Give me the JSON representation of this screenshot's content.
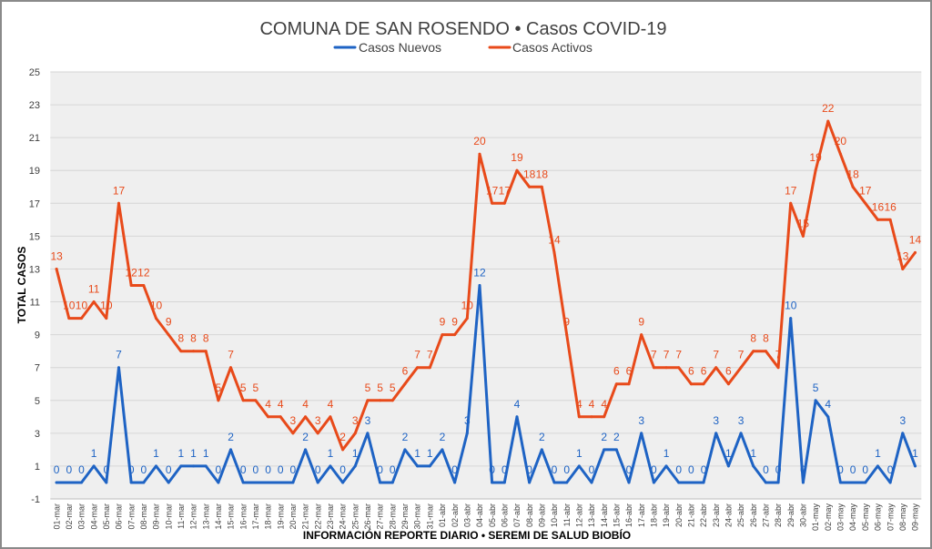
{
  "chart_data": {
    "type": "line",
    "title": "COMUNA DE SAN ROSENDO • Casos COVID-19",
    "xlabel": "INFORMACIÓN REPORTE DIARIO • SEREMI DE SALUD BIOBÍO",
    "ylabel": "TOTAL CASOS",
    "ylim": [
      -1,
      25
    ],
    "yticks": [
      -1,
      1,
      3,
      5,
      7,
      9,
      11,
      13,
      15,
      17,
      19,
      21,
      23,
      25
    ],
    "grid": true,
    "legend_position": "top",
    "data_labels": true,
    "categories": [
      "01-mar",
      "02-mar",
      "03-mar",
      "04-mar",
      "05-mar",
      "06-mar",
      "07-mar",
      "08-mar",
      "09-mar",
      "10-mar",
      "11-mar",
      "12-mar",
      "13-mar",
      "14-mar",
      "15-mar",
      "16-mar",
      "17-mar",
      "18-mar",
      "19-mar",
      "20-mar",
      "21-mar",
      "22-mar",
      "23-mar",
      "24-mar",
      "25-mar",
      "26-mar",
      "27-mar",
      "28-mar",
      "29-mar",
      "30-mar",
      "31-mar",
      "01-abr",
      "02-abr",
      "03-abr",
      "04-abr",
      "05-abr",
      "06-abr",
      "07-abr",
      "08-abr",
      "09-abr",
      "10-abr",
      "11-abr",
      "12-abr",
      "13-abr",
      "14-abr",
      "15-abr",
      "16-abr",
      "17-abr",
      "18-abr",
      "19-abr",
      "20-abr",
      "21-abr",
      "22-abr",
      "23-abr",
      "24-abr",
      "25-abr",
      "26-abr",
      "27-abr",
      "28-abr",
      "29-abr",
      "30-abr",
      "01-may",
      "02-may",
      "03-may",
      "04-may",
      "05-may",
      "06-may",
      "07-may",
      "08-may",
      "09-may"
    ],
    "series": [
      {
        "name": "Casos Nuevos",
        "color": "#1e63c4",
        "values": [
          0,
          0,
          0,
          1,
          0,
          7,
          0,
          0,
          1,
          0,
          1,
          1,
          1,
          0,
          2,
          0,
          0,
          0,
          0,
          0,
          2,
          0,
          1,
          0,
          1,
          3,
          0,
          0,
          2,
          1,
          1,
          2,
          0,
          3,
          12,
          0,
          0,
          4,
          0,
          2,
          0,
          0,
          1,
          0,
          2,
          2,
          0,
          3,
          0,
          1,
          0,
          0,
          0,
          3,
          1,
          3,
          1,
          0,
          0,
          10,
          0,
          5,
          4,
          0,
          0,
          0,
          1,
          0,
          3,
          1
        ]
      },
      {
        "name": "Casos Activos",
        "color": "#e84a1a",
        "values": [
          13,
          10,
          10,
          11,
          10,
          17,
          12,
          12,
          10,
          9,
          8,
          8,
          8,
          5,
          7,
          5,
          5,
          4,
          4,
          3,
          4,
          3,
          4,
          2,
          3,
          5,
          5,
          5,
          6,
          7,
          7,
          9,
          9,
          10,
          20,
          17,
          17,
          19,
          18,
          18,
          14,
          9,
          4,
          4,
          4,
          6,
          6,
          9,
          7,
          7,
          7,
          6,
          6,
          7,
          6,
          7,
          8,
          8,
          7,
          17,
          15,
          19,
          22,
          20,
          18,
          17,
          16,
          16,
          13,
          14
        ]
      }
    ]
  }
}
